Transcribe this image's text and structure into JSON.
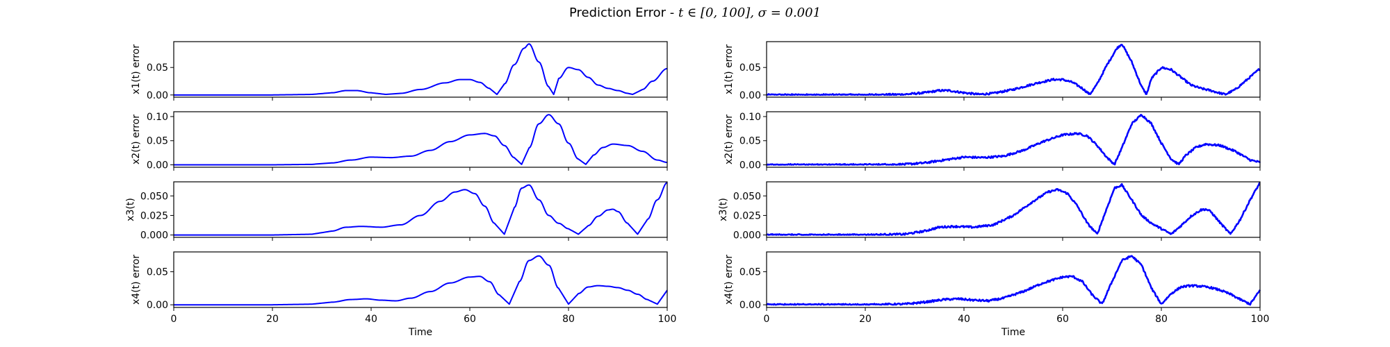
{
  "figure": {
    "title_prefix": "Prediction Error - ",
    "title_math": "t ∈ [0, 100], σ = 0.001"
  },
  "colors": {
    "line": "#0000ff",
    "axes": "#000000"
  },
  "chart_data": [
    {
      "type": "line",
      "column": "left",
      "row": 0,
      "ylabel": "x1(t) error",
      "xlabel": "",
      "xlim": [
        0,
        100
      ],
      "ylim": [
        -0.004,
        0.097
      ],
      "xticks": [
        0,
        20,
        40,
        60,
        80,
        100
      ],
      "yticks": [
        "0.00",
        "0.05"
      ],
      "ytick_values": [
        0,
        0.05
      ],
      "show_xticklabels": false,
      "noisy": false,
      "series": [
        {
          "x": [
            0,
            10,
            20,
            28,
            32,
            35,
            37,
            40,
            43,
            46,
            50,
            55,
            58,
            60,
            62,
            64,
            65.5,
            67,
            69,
            71,
            72,
            74,
            76,
            77,
            78,
            80,
            82,
            84,
            86,
            88,
            90,
            92,
            93,
            95,
            97,
            100
          ],
          "y": [
            0,
            0,
            0,
            0.001,
            0.004,
            0.008,
            0.008,
            0.004,
            0.001,
            0.003,
            0.01,
            0.022,
            0.028,
            0.028,
            0.023,
            0.012,
            0.001,
            0.02,
            0.055,
            0.085,
            0.093,
            0.06,
            0.015,
            0.001,
            0.03,
            0.05,
            0.046,
            0.032,
            0.018,
            0.012,
            0.008,
            0.003,
            0.001,
            0.01,
            0.025,
            0.048
          ]
        }
      ]
    },
    {
      "type": "line",
      "column": "left",
      "row": 1,
      "ylabel": "x2(t) error",
      "xlabel": "",
      "xlim": [
        0,
        100
      ],
      "ylim": [
        -0.005,
        0.11
      ],
      "xticks": [
        0,
        20,
        40,
        60,
        80,
        100
      ],
      "yticks": [
        "0.00",
        "0.05",
        "0.10"
      ],
      "ytick_values": [
        0,
        0.05,
        0.1
      ],
      "show_xticklabels": false,
      "noisy": false,
      "series": [
        {
          "x": [
            0,
            10,
            20,
            28,
            32,
            36,
            40,
            44,
            48,
            52,
            56,
            60,
            63,
            65,
            67,
            69,
            70.5,
            72,
            74,
            76,
            78,
            80,
            82,
            83.5,
            85,
            87,
            89,
            92,
            95,
            98,
            100
          ],
          "y": [
            0,
            0,
            0,
            0.001,
            0.004,
            0.01,
            0.016,
            0.015,
            0.018,
            0.03,
            0.048,
            0.062,
            0.065,
            0.06,
            0.04,
            0.015,
            0.001,
            0.035,
            0.085,
            0.104,
            0.085,
            0.045,
            0.012,
            0.001,
            0.02,
            0.036,
            0.043,
            0.04,
            0.028,
            0.01,
            0.005
          ]
        }
      ]
    },
    {
      "type": "line",
      "column": "left",
      "row": 2,
      "ylabel": "x3(t)",
      "xlabel": "",
      "xlim": [
        0,
        100
      ],
      "ylim": [
        -0.003,
        0.068
      ],
      "xticks": [
        0,
        20,
        40,
        60,
        80,
        100
      ],
      "yticks": [
        "0.000",
        "0.025",
        "0.050"
      ],
      "ytick_values": [
        0,
        0.025,
        0.05
      ],
      "show_xticklabels": false,
      "noisy": false,
      "series": [
        {
          "x": [
            0,
            10,
            20,
            28,
            32,
            35,
            38,
            42,
            46,
            50,
            54,
            57,
            59,
            61,
            63,
            65,
            67,
            69,
            70.5,
            72,
            74,
            76,
            78,
            80,
            82,
            84,
            86,
            88,
            89,
            90,
            92,
            94,
            96,
            98,
            100
          ],
          "y": [
            0,
            0,
            0,
            0.001,
            0.005,
            0.01,
            0.011,
            0.01,
            0.013,
            0.025,
            0.043,
            0.055,
            0.058,
            0.053,
            0.037,
            0.015,
            0.001,
            0.035,
            0.06,
            0.064,
            0.045,
            0.025,
            0.015,
            0.008,
            0.001,
            0.012,
            0.024,
            0.032,
            0.033,
            0.03,
            0.015,
            0.001,
            0.02,
            0.045,
            0.067
          ]
        }
      ]
    },
    {
      "type": "line",
      "column": "left",
      "row": 3,
      "ylabel": "x4(t) error",
      "xlabel": "Time",
      "xlim": [
        0,
        100
      ],
      "ylim": [
        -0.004,
        0.08
      ],
      "xticks": [
        0,
        20,
        40,
        60,
        80,
        100
      ],
      "yticks": [
        "0.00",
        "0.05"
      ],
      "ytick_values": [
        0,
        0.05
      ],
      "show_xticklabels": true,
      "noisy": false,
      "series": [
        {
          "x": [
            0,
            10,
            20,
            28,
            32,
            36,
            39,
            42,
            45,
            48,
            52,
            56,
            60,
            62,
            64,
            66,
            68,
            70,
            72,
            74,
            76,
            78,
            80,
            82,
            84,
            86,
            88,
            90,
            92,
            94,
            96,
            98,
            100
          ],
          "y": [
            0,
            0,
            0,
            0.001,
            0.004,
            0.008,
            0.009,
            0.007,
            0.006,
            0.01,
            0.02,
            0.033,
            0.042,
            0.043,
            0.035,
            0.015,
            0.001,
            0.035,
            0.067,
            0.074,
            0.06,
            0.025,
            0.001,
            0.017,
            0.027,
            0.029,
            0.028,
            0.026,
            0.022,
            0.016,
            0.008,
            0.001,
            0.022
          ]
        }
      ]
    },
    {
      "type": "line",
      "column": "right",
      "row": 0,
      "ylabel": "x1(t) error",
      "xlabel": "",
      "xlim": [
        0,
        100
      ],
      "ylim": [
        -0.004,
        0.097
      ],
      "xticks": [
        0,
        20,
        40,
        60,
        80,
        100
      ],
      "yticks": [
        "0.00",
        "0.05"
      ],
      "ytick_values": [
        0,
        0.05
      ],
      "show_xticklabels": false,
      "noisy": true,
      "series": [
        {
          "x": [
            0,
            10,
            20,
            28,
            32,
            35,
            37,
            40,
            43,
            46,
            50,
            55,
            58,
            60,
            62,
            64,
            65.5,
            67,
            69,
            71,
            72,
            74,
            76,
            77,
            78,
            80,
            82,
            84,
            86,
            88,
            90,
            92,
            93,
            95,
            97,
            100
          ],
          "y": [
            0,
            0,
            0,
            0.001,
            0.004,
            0.008,
            0.008,
            0.004,
            0.001,
            0.003,
            0.01,
            0.022,
            0.028,
            0.028,
            0.023,
            0.012,
            0.001,
            0.02,
            0.055,
            0.085,
            0.093,
            0.06,
            0.015,
            0.001,
            0.03,
            0.05,
            0.046,
            0.032,
            0.018,
            0.012,
            0.008,
            0.003,
            0.001,
            0.01,
            0.025,
            0.048
          ]
        }
      ]
    },
    {
      "type": "line",
      "column": "right",
      "row": 1,
      "ylabel": "x2(t) error",
      "xlabel": "",
      "xlim": [
        0,
        100
      ],
      "ylim": [
        -0.005,
        0.11
      ],
      "xticks": [
        0,
        20,
        40,
        60,
        80,
        100
      ],
      "yticks": [
        "0.00",
        "0.05",
        "0.10"
      ],
      "ytick_values": [
        0,
        0.05,
        0.1
      ],
      "show_xticklabels": false,
      "noisy": true,
      "series": [
        {
          "x": [
            0,
            10,
            20,
            28,
            32,
            36,
            40,
            44,
            48,
            52,
            56,
            60,
            63,
            65,
            67,
            69,
            70.5,
            72,
            74,
            76,
            78,
            80,
            82,
            83.5,
            85,
            87,
            89,
            92,
            95,
            98,
            100
          ],
          "y": [
            0,
            0,
            0,
            0.001,
            0.004,
            0.01,
            0.016,
            0.015,
            0.018,
            0.03,
            0.048,
            0.062,
            0.065,
            0.06,
            0.04,
            0.015,
            0.001,
            0.035,
            0.085,
            0.104,
            0.085,
            0.045,
            0.012,
            0.001,
            0.02,
            0.036,
            0.043,
            0.04,
            0.028,
            0.01,
            0.005
          ]
        }
      ]
    },
    {
      "type": "line",
      "column": "right",
      "row": 2,
      "ylabel": "x3(t)",
      "xlabel": "",
      "xlim": [
        0,
        100
      ],
      "ylim": [
        -0.003,
        0.068
      ],
      "xticks": [
        0,
        20,
        40,
        60,
        80,
        100
      ],
      "yticks": [
        "0.000",
        "0.025",
        "0.050"
      ],
      "ytick_values": [
        0,
        0.025,
        0.05
      ],
      "show_xticklabels": false,
      "noisy": true,
      "series": [
        {
          "x": [
            0,
            10,
            20,
            28,
            32,
            35,
            38,
            42,
            46,
            50,
            54,
            57,
            59,
            61,
            63,
            65,
            67,
            69,
            70.5,
            72,
            74,
            76,
            78,
            80,
            82,
            84,
            86,
            88,
            89,
            90,
            92,
            94,
            96,
            98,
            100
          ],
          "y": [
            0,
            0,
            0,
            0.001,
            0.005,
            0.01,
            0.011,
            0.01,
            0.013,
            0.025,
            0.043,
            0.055,
            0.058,
            0.053,
            0.037,
            0.015,
            0.001,
            0.035,
            0.06,
            0.064,
            0.045,
            0.025,
            0.015,
            0.008,
            0.001,
            0.012,
            0.024,
            0.032,
            0.033,
            0.03,
            0.015,
            0.001,
            0.02,
            0.045,
            0.067
          ]
        }
      ]
    },
    {
      "type": "line",
      "column": "right",
      "row": 3,
      "ylabel": "x4(t) error",
      "xlabel": "Time",
      "xlim": [
        0,
        100
      ],
      "ylim": [
        -0.004,
        0.08
      ],
      "xticks": [
        0,
        20,
        40,
        60,
        80,
        100
      ],
      "yticks": [
        "0.00",
        "0.05"
      ],
      "ytick_values": [
        0,
        0.05
      ],
      "show_xticklabels": true,
      "noisy": true,
      "series": [
        {
          "x": [
            0,
            10,
            20,
            28,
            32,
            36,
            39,
            42,
            45,
            48,
            52,
            56,
            60,
            62,
            64,
            66,
            68,
            70,
            72,
            74,
            76,
            78,
            80,
            82,
            84,
            86,
            88,
            90,
            92,
            94,
            96,
            98,
            100
          ],
          "y": [
            0,
            0,
            0,
            0.001,
            0.004,
            0.008,
            0.009,
            0.007,
            0.006,
            0.01,
            0.02,
            0.033,
            0.042,
            0.043,
            0.035,
            0.015,
            0.001,
            0.035,
            0.067,
            0.074,
            0.06,
            0.025,
            0.001,
            0.017,
            0.027,
            0.029,
            0.028,
            0.026,
            0.022,
            0.016,
            0.008,
            0.001,
            0.022
          ]
        }
      ]
    }
  ]
}
